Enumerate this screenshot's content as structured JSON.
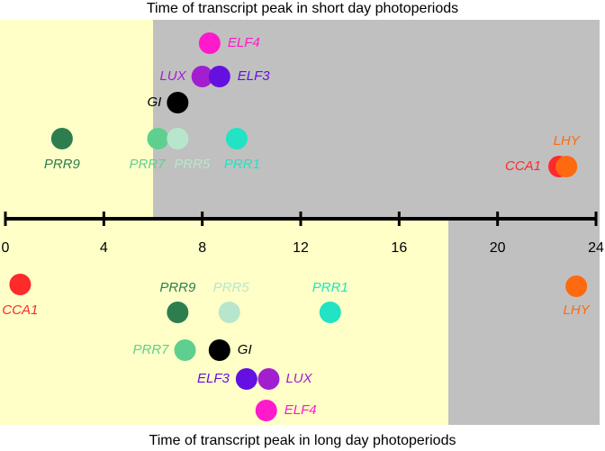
{
  "chart_data": {
    "type": "timeline",
    "xlim": [
      0,
      24
    ],
    "xticks": [
      0,
      4,
      8,
      12,
      16,
      20,
      24
    ],
    "light_color": "#ffffc8",
    "dark_color": "#c0c0c0",
    "panels": [
      {
        "title": "Time of transcript peak in short day photoperiods",
        "light": [
          0,
          6
        ],
        "points": [
          {
            "name": "ELF4",
            "time": 8.3,
            "color": "#ff1acb"
          },
          {
            "name": "LUX",
            "time": 8.0,
            "color": "#a21fd0"
          },
          {
            "name": "ELF3",
            "time": 8.7,
            "color": "#6410e0"
          },
          {
            "name": "GI",
            "time": 7.0,
            "color": "#000000"
          },
          {
            "name": "PRR9",
            "time": 2.3,
            "color": "#2e7d4f"
          },
          {
            "name": "PRR7",
            "time": 6.2,
            "color": "#5fcf8f"
          },
          {
            "name": "PRR5",
            "time": 7.0,
            "color": "#b8e6cc"
          },
          {
            "name": "PRR1",
            "time": 9.4,
            "color": "#22e3c3"
          },
          {
            "name": "CCA1",
            "time": 22.5,
            "color": "#ff2a2a"
          },
          {
            "name": "LHY",
            "time": 22.8,
            "color": "#ff6a10"
          }
        ]
      },
      {
        "title": "Time of transcript peak in long day photoperiods",
        "light": [
          0,
          18
        ],
        "points": [
          {
            "name": "CCA1",
            "time": 0.6,
            "color": "#ff2a2a"
          },
          {
            "name": "PRR9",
            "time": 7.0,
            "color": "#2e7d4f"
          },
          {
            "name": "PRR5",
            "time": 9.1,
            "color": "#b8e6cc"
          },
          {
            "name": "PRR1",
            "time": 13.2,
            "color": "#22e3c3"
          },
          {
            "name": "LHY",
            "time": 23.2,
            "color": "#ff6a10"
          },
          {
            "name": "PRR7",
            "time": 7.3,
            "color": "#5fcf8f"
          },
          {
            "name": "GI",
            "time": 8.7,
            "color": "#000000"
          },
          {
            "name": "ELF3",
            "time": 9.8,
            "color": "#6410e0"
          },
          {
            "name": "LUX",
            "time": 10.7,
            "color": "#a21fd0"
          },
          {
            "name": "ELF4",
            "time": 10.6,
            "color": "#ff1acb"
          }
        ]
      }
    ]
  }
}
